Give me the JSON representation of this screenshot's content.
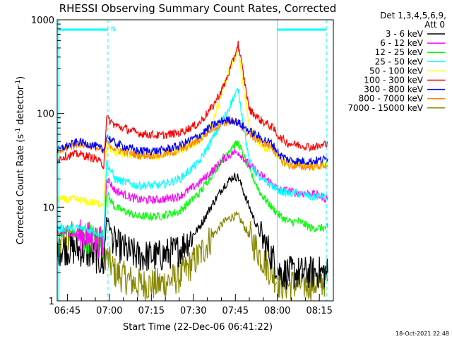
{
  "chart_data": {
    "type": "line",
    "title": "RHESSI Observing Summary Count Rates, Corrected",
    "xlabel": "Start Time (22-Dec-06 06:41:22)",
    "ylabel_main": "Corrected Count Rate (s",
    "ylabel_sup1": "-1",
    "ylabel_mid": " detector",
    "ylabel_sup2": "-1",
    "ylabel_end": ")",
    "y_scale": "log",
    "ylim": [
      1,
      1000
    ],
    "xlim_minutes": [
      41.37,
      140
    ],
    "x_ticks": [
      {
        "min": 45,
        "label": "06:45"
      },
      {
        "min": 60,
        "label": "07:00"
      },
      {
        "min": 75,
        "label": "07:15"
      },
      {
        "min": 90,
        "label": "07:30"
      },
      {
        "min": 105,
        "label": "07:45"
      },
      {
        "min": 120,
        "label": "08:00"
      },
      {
        "min": 135,
        "label": "08:15"
      }
    ],
    "y_ticks": [
      {
        "value": 1,
        "label": "1"
      },
      {
        "value": 10,
        "label": "10"
      },
      {
        "value": 100,
        "label": "100"
      },
      {
        "value": 1000,
        "label": "1000"
      }
    ],
    "legend": {
      "header1": "Det 1,3,4,5,6,9,",
      "header2": "Att 0",
      "placement": "right"
    },
    "series": [
      {
        "name": "3 - 6 keV",
        "color": "#000000",
        "x": [
          41.4,
          44,
          49,
          55,
          58,
          59,
          62,
          70,
          78,
          85,
          92,
          97,
          101,
          104,
          106,
          110,
          114,
          118,
          121,
          124,
          128,
          132,
          136,
          138
        ],
        "y": [
          3.5,
          3.6,
          3.5,
          3.0,
          2.4,
          8,
          4,
          3,
          3,
          3.5,
          6,
          11,
          17,
          21,
          21,
          10,
          5,
          3,
          2,
          2,
          2,
          2,
          2,
          2
        ]
      },
      {
        "name": "6 - 12 keV",
        "color": "#ff00ff",
        "x": [
          41.4,
          44,
          49,
          55,
          58,
          59,
          62,
          70,
          78,
          85,
          92,
          97,
          101,
          104,
          106,
          110,
          114,
          118,
          121,
          124,
          128,
          132,
          136,
          138
        ],
        "y": [
          5,
          5.5,
          5,
          4.5,
          4,
          21,
          15,
          12,
          12,
          13,
          18,
          25,
          33,
          38,
          39,
          28,
          22,
          18,
          15,
          15,
          14,
          14,
          13,
          12
        ]
      },
      {
        "name": "12 - 25 keV",
        "color": "#00ff00",
        "x": [
          41.4,
          44,
          49,
          55,
          58,
          59,
          62,
          70,
          78,
          85,
          92,
          97,
          101,
          104,
          106,
          110,
          114,
          118,
          121,
          124,
          128,
          132,
          136,
          138
        ],
        "y": [
          5,
          5.5,
          5,
          4.5,
          4,
          14,
          10,
          8,
          8,
          9,
          14,
          23,
          35,
          45,
          48,
          25,
          14,
          10,
          8,
          7,
          7,
          6,
          6,
          6
        ]
      },
      {
        "name": "25 - 50 keV",
        "color": "#00ffff",
        "x": [
          41.4,
          44,
          49,
          55,
          58,
          59,
          62,
          70,
          78,
          85,
          92,
          97,
          101,
          104,
          106,
          110,
          114,
          118,
          121,
          124,
          128,
          132,
          136,
          138
        ],
        "y": [
          6,
          6,
          6,
          5.5,
          5,
          30,
          20,
          17,
          17,
          20,
          30,
          55,
          90,
          140,
          180,
          30,
          20,
          17,
          15,
          14,
          14,
          13,
          13,
          12
        ]
      },
      {
        "name": "50 - 100 keV",
        "color": "#ffff00",
        "x": [
          41.4,
          44,
          49,
          55,
          58,
          59,
          62,
          70,
          78,
          85,
          92,
          97,
          101,
          104,
          106,
          110,
          114,
          118,
          121,
          124,
          128,
          132,
          136,
          138
        ],
        "y": [
          12,
          12,
          12,
          11,
          11,
          45,
          38,
          35,
          35,
          40,
          50,
          80,
          200,
          350,
          500,
          70,
          45,
          40,
          33,
          30,
          30,
          28,
          27,
          27
        ]
      },
      {
        "name": "100 - 300 keV",
        "color": "#ff0000",
        "x": [
          41.4,
          44,
          49,
          55,
          58,
          59,
          62,
          70,
          78,
          85,
          92,
          97,
          101,
          104,
          106,
          110,
          114,
          118,
          121,
          124,
          128,
          132,
          136,
          138
        ],
        "y": [
          32,
          35,
          37,
          33,
          28,
          90,
          75,
          62,
          58,
          62,
          78,
          120,
          200,
          350,
          550,
          110,
          85,
          72,
          55,
          48,
          46,
          44,
          45,
          50
        ]
      },
      {
        "name": "300 - 800 keV",
        "color": "#0000ff",
        "x": [
          41.4,
          44,
          49,
          55,
          58,
          59,
          62,
          70,
          78,
          85,
          92,
          97,
          101,
          104,
          106,
          110,
          114,
          118,
          121,
          124,
          128,
          132,
          136,
          138
        ],
        "y": [
          40,
          44,
          50,
          45,
          40,
          58,
          48,
          40,
          40,
          45,
          58,
          75,
          85,
          85,
          80,
          65,
          55,
          48,
          36,
          32,
          31,
          31,
          32,
          33
        ]
      },
      {
        "name": "800 - 7000 keV",
        "color": "#ff8800",
        "x": [
          41.4,
          44,
          49,
          55,
          58,
          59,
          62,
          70,
          78,
          85,
          92,
          97,
          101,
          104,
          106,
          110,
          114,
          118,
          121,
          124,
          128,
          132,
          136,
          138
        ],
        "y": [
          38,
          42,
          48,
          44,
          38,
          50,
          42,
          36,
          36,
          40,
          52,
          70,
          80,
          82,
          78,
          60,
          50,
          44,
          32,
          28,
          27,
          27,
          28,
          28
        ]
      },
      {
        "name": "7000 - 15000 keV",
        "color": "#888800",
        "x": [
          41.4,
          44,
          49,
          55,
          58,
          59,
          62,
          70,
          78,
          85,
          92,
          97,
          101,
          104,
          106,
          110,
          114,
          118,
          121,
          124,
          128,
          132,
          136,
          138
        ],
        "y": [
          3.5,
          4.5,
          5.5,
          4.5,
          3.5,
          3,
          2,
          1.5,
          1.5,
          1.8,
          3,
          5,
          7,
          8,
          8,
          5,
          3,
          2,
          1.5,
          1.5,
          1.5,
          1.5,
          1.6,
          1.7
        ]
      }
    ],
    "annotations": {
      "flag_label": "N",
      "flag_segments_minutes": [
        [
          42,
          59.5
        ],
        [
          120,
          137.5
        ]
      ],
      "dashed_lines_minutes": [
        59.5,
        137.5
      ],
      "solid_lines_minutes": [
        41.9,
        120
      ]
    },
    "timestamp": "18-Oct-2021 22:48"
  }
}
